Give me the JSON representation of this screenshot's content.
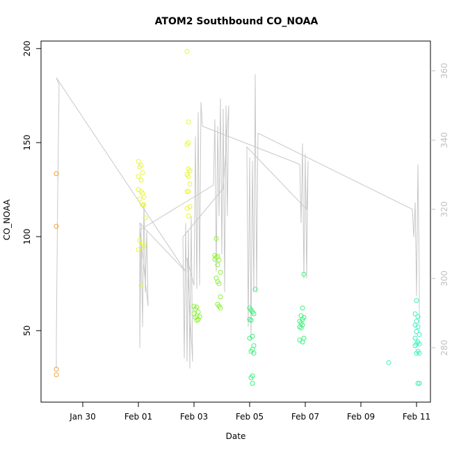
{
  "chart_data": {
    "type": "scatter",
    "title": "ATOM2 Southbound CO_NOAA",
    "xlabel": "Date",
    "ylabel": "CO_NOAA",
    "x_tick_labels": [
      "Jan 30",
      "Feb 01",
      "Feb 03",
      "Feb 05",
      "Feb 07",
      "Feb 09",
      "Feb 11"
    ],
    "x_tick_values": [
      1,
      3,
      5,
      7,
      9,
      11,
      13
    ],
    "xlim": [
      -0.5,
      13.5
    ],
    "ylim": [
      12,
      204
    ],
    "y_ticks": [
      50,
      100,
      150,
      200
    ],
    "y2_ticks": [
      280,
      300,
      320,
      340,
      360
    ],
    "y2lim": [
      264.3,
      368.6
    ],
    "grid": false,
    "legend": "none",
    "line_color": "#c8c8c8",
    "point_color_scale": [
      "#ff8c00",
      "#ffff00",
      "#66ff00",
      "#00ff99"
    ],
    "series": [
      {
        "color": "#f39c3a",
        "points": [
          [
            0.05,
            133.5
          ],
          [
            0.05,
            105.5
          ],
          [
            0.05,
            29.5
          ],
          [
            0.05,
            26.5
          ]
        ]
      },
      {
        "color": "#e7f53a",
        "points": [
          [
            3.0,
            140
          ],
          [
            3.1,
            138
          ],
          [
            3.05,
            137
          ],
          [
            3.15,
            134
          ],
          [
            3.0,
            132
          ],
          [
            3.1,
            130
          ],
          [
            3.0,
            125
          ],
          [
            3.1,
            124
          ],
          [
            3.15,
            123
          ],
          [
            3.2,
            121
          ],
          [
            3.05,
            120
          ],
          [
            3.15,
            117
          ],
          [
            3.2,
            117
          ],
          [
            3.25,
            110
          ],
          [
            3.05,
            98
          ],
          [
            3.15,
            96
          ],
          [
            3.2,
            95
          ],
          [
            3.0,
            93
          ],
          [
            3.1,
            74
          ],
          [
            4.75,
            198.5
          ],
          [
            4.8,
            161
          ],
          [
            4.8,
            150
          ],
          [
            4.75,
            149
          ],
          [
            4.8,
            136
          ],
          [
            4.85,
            135
          ],
          [
            4.75,
            133
          ],
          [
            4.8,
            132
          ],
          [
            4.85,
            128
          ],
          [
            4.75,
            124
          ],
          [
            4.8,
            124
          ],
          [
            4.85,
            116
          ],
          [
            4.75,
            115
          ],
          [
            4.8,
            111
          ]
        ]
      },
      {
        "color": "#8cf23a",
        "points": [
          [
            5.0,
            63
          ],
          [
            5.1,
            62.5
          ],
          [
            5.05,
            61.5
          ],
          [
            5.15,
            60
          ],
          [
            5.0,
            59
          ],
          [
            5.1,
            58
          ],
          [
            5.2,
            57.5
          ],
          [
            5.05,
            57
          ],
          [
            5.15,
            56
          ],
          [
            5.1,
            55.5
          ],
          [
            5.8,
            99
          ],
          [
            5.75,
            90
          ],
          [
            5.85,
            89.5
          ],
          [
            5.8,
            89
          ],
          [
            5.75,
            88
          ],
          [
            5.9,
            87.5
          ],
          [
            5.85,
            85
          ],
          [
            5.95,
            81
          ],
          [
            5.8,
            78
          ],
          [
            5.85,
            76
          ],
          [
            5.9,
            75
          ],
          [
            5.95,
            68
          ],
          [
            5.85,
            64
          ],
          [
            5.9,
            63
          ],
          [
            5.95,
            62
          ]
        ]
      },
      {
        "color": "#3af27a",
        "points": [
          [
            7.0,
            62
          ],
          [
            7.05,
            61
          ],
          [
            7.1,
            60
          ],
          [
            7.15,
            59
          ],
          [
            7.0,
            56
          ],
          [
            7.05,
            55.5
          ],
          [
            7.1,
            47
          ],
          [
            7.0,
            46
          ],
          [
            7.15,
            42
          ],
          [
            7.1,
            40
          ],
          [
            7.05,
            39
          ],
          [
            7.15,
            38
          ],
          [
            7.1,
            26
          ],
          [
            7.05,
            25
          ],
          [
            7.1,
            22
          ],
          [
            7.2,
            72
          ],
          [
            8.95,
            80
          ],
          [
            8.9,
            62
          ],
          [
            8.85,
            58
          ],
          [
            8.95,
            57
          ],
          [
            8.9,
            56
          ],
          [
            8.8,
            55
          ],
          [
            8.85,
            54
          ],
          [
            8.9,
            53
          ],
          [
            8.8,
            52
          ],
          [
            8.85,
            51.5
          ],
          [
            8.95,
            46
          ],
          [
            8.8,
            45
          ],
          [
            8.9,
            44
          ]
        ]
      },
      {
        "color": "#3af2c0",
        "points": [
          [
            12.0,
            33
          ],
          [
            13.0,
            66
          ],
          [
            12.95,
            59
          ],
          [
            13.05,
            57.5
          ],
          [
            13.0,
            55
          ],
          [
            12.95,
            53
          ],
          [
            13.05,
            52
          ],
          [
            13.0,
            49.5
          ],
          [
            13.1,
            48
          ],
          [
            12.95,
            46
          ],
          [
            13.05,
            44
          ],
          [
            13.0,
            43
          ],
          [
            13.1,
            43
          ],
          [
            12.95,
            42
          ],
          [
            13.05,
            39
          ],
          [
            13.0,
            38
          ],
          [
            13.1,
            38
          ],
          [
            13.05,
            22
          ],
          [
            13.1,
            22
          ]
        ]
      }
    ],
    "line_series": [
      [
        0.05,
        274
      ],
      [
        0.05,
        282
      ],
      [
        0.1,
        325
      ],
      [
        0.15,
        356
      ],
      [
        0.05,
        358
      ],
      [
        4.7,
        302
      ],
      [
        3.05,
        316
      ],
      [
        3.05,
        280
      ],
      [
        3.1,
        316
      ],
      [
        3.05,
        290
      ],
      [
        3.1,
        312
      ],
      [
        3.15,
        286
      ],
      [
        3.2,
        322
      ],
      [
        3.25,
        296
      ],
      [
        3.3,
        314
      ],
      [
        3.35,
        292
      ],
      [
        3.05,
        314
      ],
      [
        5.7,
        327
      ],
      [
        5.75,
        346
      ],
      [
        5.8,
        302
      ],
      [
        5.85,
        344
      ],
      [
        5.9,
        318
      ],
      [
        5.95,
        352
      ],
      [
        6.0,
        307
      ],
      [
        6.05,
        349
      ],
      [
        6.1,
        296
      ],
      [
        6.15,
        350
      ],
      [
        6.2,
        318
      ],
      [
        6.25,
        350
      ],
      [
        6.05,
        326
      ],
      [
        4.6,
        312
      ],
      [
        4.65,
        277
      ],
      [
        4.7,
        316
      ],
      [
        4.75,
        276
      ],
      [
        4.8,
        314
      ],
      [
        4.85,
        274
      ],
      [
        4.9,
        318
      ],
      [
        4.95,
        276
      ],
      [
        4.75,
        306
      ],
      [
        5.0,
        298
      ],
      [
        5.05,
        341
      ],
      [
        5.1,
        297
      ],
      [
        5.15,
        348
      ],
      [
        5.2,
        298
      ],
      [
        5.25,
        351
      ],
      [
        5.3,
        344
      ],
      [
        8.8,
        333
      ],
      [
        8.85,
        316
      ],
      [
        8.9,
        339
      ],
      [
        8.95,
        300
      ],
      [
        9.0,
        336
      ],
      [
        9.05,
        300
      ],
      [
        9.1,
        334
      ],
      [
        9.05,
        320
      ],
      [
        6.9,
        338
      ],
      [
        6.95,
        286
      ],
      [
        7.0,
        335
      ],
      [
        7.05,
        282
      ],
      [
        7.1,
        334
      ],
      [
        7.15,
        296
      ],
      [
        7.2,
        359
      ],
      [
        7.25,
        296
      ],
      [
        7.3,
        342
      ],
      [
        12.85,
        320
      ],
      [
        12.9,
        312
      ],
      [
        12.95,
        322
      ],
      [
        13.0,
        295
      ],
      [
        13.05,
        333
      ],
      [
        13.1,
        300
      ],
      [
        13.1,
        287
      ]
    ]
  }
}
